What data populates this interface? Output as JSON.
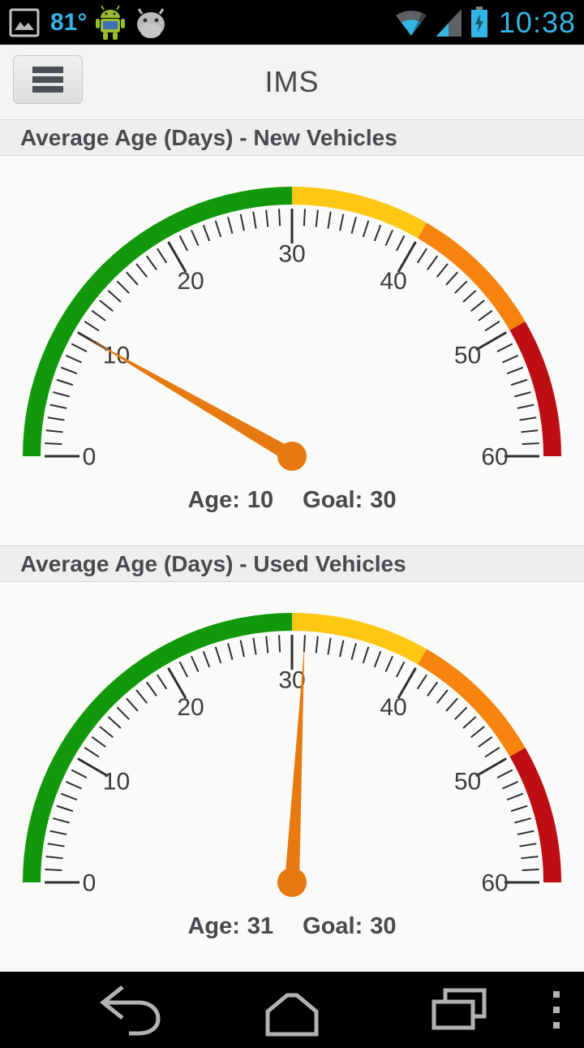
{
  "status_bar": {
    "time": "10:38",
    "temperature": "81°",
    "accent_color": "#33b5e5",
    "icons": [
      "gallery-icon",
      "android-green-icon",
      "android-gray-icon",
      "wifi-icon",
      "signal-icon",
      "battery-charging-icon"
    ]
  },
  "header": {
    "title": "IMS",
    "menu_icon": "hamburger-icon"
  },
  "chart_data": [
    {
      "type": "gauge",
      "title": "Average Age (Days) - New Vehicles",
      "min": 0,
      "max": 60,
      "value": 10,
      "goal": 30,
      "tick_interval": 1,
      "major_interval": 10,
      "tick_labels": [
        "0",
        "10",
        "20",
        "30",
        "40",
        "50",
        "60"
      ],
      "bands": [
        {
          "from": 0,
          "to": 30,
          "color": "#12990b"
        },
        {
          "from": 30,
          "to": 40,
          "color": "#fdc713"
        },
        {
          "from": 40,
          "to": 50,
          "color": "#f6830e"
        },
        {
          "from": 50,
          "to": 60,
          "color": "#bd0e13"
        }
      ],
      "needle_color": "#e6790f",
      "tick_color": "#2f2f2f",
      "label_color": "#3c3c3c",
      "caption": {
        "age_label": "Age:",
        "age_value": "10",
        "goal_label": "Goal:",
        "goal_value": "30"
      }
    },
    {
      "type": "gauge",
      "title": "Average Age (Days) - Used Vehicles",
      "min": 0,
      "max": 60,
      "value": 31,
      "goal": 30,
      "tick_interval": 1,
      "major_interval": 10,
      "tick_labels": [
        "0",
        "10",
        "20",
        "30",
        "40",
        "50",
        "60"
      ],
      "bands": [
        {
          "from": 0,
          "to": 30,
          "color": "#12990b"
        },
        {
          "from": 30,
          "to": 40,
          "color": "#fdc713"
        },
        {
          "from": 40,
          "to": 50,
          "color": "#f6830e"
        },
        {
          "from": 50,
          "to": 60,
          "color": "#bd0e13"
        }
      ],
      "needle_color": "#e6790f",
      "tick_color": "#2f2f2f",
      "label_color": "#3c3c3c",
      "caption": {
        "age_label": "Age:",
        "age_value": "31",
        "goal_label": "Goal:",
        "goal_value": "30"
      }
    }
  ],
  "nav_bar": {
    "buttons": [
      "back",
      "home",
      "recents",
      "overflow"
    ]
  }
}
